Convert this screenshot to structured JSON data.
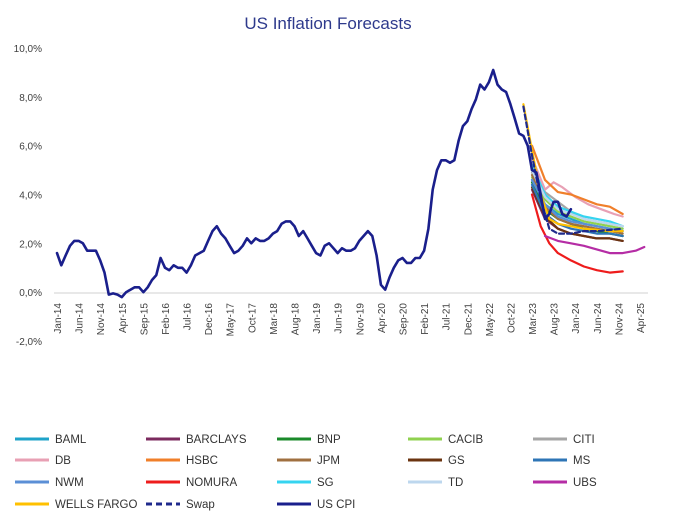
{
  "chart_data": {
    "type": "line",
    "title": "US Inflation Forecasts",
    "xlabel": "",
    "ylabel": "",
    "ylim": [
      -2.0,
      10.0
    ],
    "yticks": [
      "-2,0%",
      "0,0%",
      "2,0%",
      "4,0%",
      "6,0%",
      "8,0%",
      "10,0%"
    ],
    "ytick_values": [
      -2,
      0,
      2,
      4,
      6,
      8,
      10
    ],
    "x_range": [
      0,
      135
    ],
    "x_ticks": [
      {
        "label": "Jan-14",
        "t": 0
      },
      {
        "label": "Jun-14",
        "t": 5
      },
      {
        "label": "Nov-14",
        "t": 10
      },
      {
        "label": "Apr-15",
        "t": 15
      },
      {
        "label": "Sep-15",
        "t": 20
      },
      {
        "label": "Feb-16",
        "t": 25
      },
      {
        "label": "Jul-16",
        "t": 30
      },
      {
        "label": "Dec-16",
        "t": 35
      },
      {
        "label": "May-17",
        "t": 40
      },
      {
        "label": "Oct-17",
        "t": 45
      },
      {
        "label": "Mar-18",
        "t": 50
      },
      {
        "label": "Aug-18",
        "t": 55
      },
      {
        "label": "Jan-19",
        "t": 60
      },
      {
        "label": "Jun-19",
        "t": 65
      },
      {
        "label": "Nov-19",
        "t": 70
      },
      {
        "label": "Apr-20",
        "t": 75
      },
      {
        "label": "Sep-20",
        "t": 80
      },
      {
        "label": "Feb-21",
        "t": 85
      },
      {
        "label": "Jul-21",
        "t": 90
      },
      {
        "label": "Dec-21",
        "t": 95
      },
      {
        "label": "May-22",
        "t": 100
      },
      {
        "label": "Oct-22",
        "t": 105
      },
      {
        "label": "Mar-23",
        "t": 110
      },
      {
        "label": "Aug-23",
        "t": 115
      },
      {
        "label": "Jan-24",
        "t": 120
      },
      {
        "label": "Jun-24",
        "t": 125
      },
      {
        "label": "Nov-24",
        "t": 130
      },
      {
        "label": "Apr-25",
        "t": 135
      }
    ],
    "grid": false,
    "legend_position": "bottom",
    "series": [
      {
        "name": "BAML",
        "color": "#1fa3c9",
        "dash": false,
        "points": [
          [
            110,
            4.6
          ],
          [
            113,
            3.6
          ],
          [
            116,
            3.2
          ],
          [
            119,
            3.0
          ],
          [
            122,
            2.8
          ],
          [
            125,
            2.7
          ],
          [
            128,
            2.6
          ],
          [
            131,
            2.5
          ]
        ]
      },
      {
        "name": "BARCLAYS",
        "color": "#7b2a5e",
        "dash": false,
        "points": [
          [
            110,
            4.2
          ],
          [
            113,
            3.0
          ],
          [
            116,
            2.6
          ],
          [
            119,
            2.4
          ],
          [
            122,
            2.3
          ],
          [
            125,
            2.2
          ],
          [
            128,
            2.2
          ],
          [
            131,
            2.1
          ]
        ]
      },
      {
        "name": "BNP",
        "color": "#1a8a2a",
        "dash": false,
        "points": [
          [
            110,
            4.5
          ],
          [
            113,
            3.4
          ],
          [
            116,
            3.0
          ],
          [
            119,
            2.8
          ],
          [
            122,
            2.6
          ],
          [
            125,
            2.5
          ],
          [
            128,
            2.4
          ],
          [
            131,
            2.3
          ]
        ]
      },
      {
        "name": "CACIB",
        "color": "#8fd14f",
        "dash": false,
        "points": [
          [
            110,
            4.7
          ],
          [
            113,
            3.8
          ],
          [
            116,
            3.3
          ],
          [
            119,
            3.1
          ],
          [
            122,
            2.9
          ],
          [
            125,
            2.8
          ],
          [
            128,
            2.7
          ],
          [
            131,
            2.6
          ]
        ]
      },
      {
        "name": "CITI",
        "color": "#a6a6a6",
        "dash": false,
        "points": [
          [
            110,
            4.9
          ],
          [
            113,
            4.1
          ],
          [
            116,
            3.7
          ],
          [
            119,
            3.3
          ],
          [
            122,
            3.0
          ],
          [
            125,
            2.9
          ],
          [
            128,
            2.8
          ],
          [
            131,
            2.7
          ]
        ]
      },
      {
        "name": "DB",
        "color": "#e8a0b4",
        "dash": false,
        "points": [
          [
            110,
            5.5
          ],
          [
            113,
            4.2
          ],
          [
            115,
            4.5
          ],
          [
            117,
            4.3
          ],
          [
            120,
            3.9
          ],
          [
            123,
            3.6
          ],
          [
            126,
            3.4
          ],
          [
            129,
            3.2
          ],
          [
            131,
            3.1
          ]
        ]
      },
      {
        "name": "HSBC",
        "color": "#f07f2a",
        "dash": false,
        "points": [
          [
            110,
            6.0
          ],
          [
            113,
            4.6
          ],
          [
            116,
            4.1
          ],
          [
            119,
            4.0
          ],
          [
            122,
            3.8
          ],
          [
            125,
            3.6
          ],
          [
            128,
            3.5
          ],
          [
            131,
            3.2
          ]
        ]
      },
      {
        "name": "JPM",
        "color": "#a07040",
        "dash": false,
        "points": [
          [
            110,
            4.8
          ],
          [
            113,
            3.5
          ],
          [
            116,
            3.0
          ],
          [
            119,
            2.8
          ],
          [
            122,
            2.7
          ],
          [
            125,
            2.6
          ],
          [
            128,
            2.5
          ],
          [
            131,
            2.4
          ]
        ]
      },
      {
        "name": "GS",
        "color": "#6b3410",
        "dash": false,
        "points": [
          [
            110,
            4.3
          ],
          [
            113,
            3.1
          ],
          [
            116,
            2.6
          ],
          [
            119,
            2.4
          ],
          [
            122,
            2.3
          ],
          [
            125,
            2.2
          ],
          [
            128,
            2.2
          ],
          [
            131,
            2.1
          ]
        ]
      },
      {
        "name": "MS",
        "color": "#2e75b6",
        "dash": false,
        "points": [
          [
            110,
            4.4
          ],
          [
            113,
            3.2
          ],
          [
            116,
            2.8
          ],
          [
            119,
            2.6
          ],
          [
            122,
            2.5
          ],
          [
            125,
            2.4
          ],
          [
            128,
            2.4
          ],
          [
            131,
            2.3
          ]
        ]
      },
      {
        "name": "NWM",
        "color": "#5b8fd6",
        "dash": false,
        "points": [
          [
            110,
            4.6
          ],
          [
            113,
            3.6
          ],
          [
            116,
            3.1
          ],
          [
            119,
            2.9
          ],
          [
            122,
            2.8
          ],
          [
            125,
            2.7
          ],
          [
            128,
            2.6
          ],
          [
            131,
            2.5
          ]
        ]
      },
      {
        "name": "NOMURA",
        "color": "#ee1c1c",
        "dash": false,
        "points": [
          [
            110,
            4.0
          ],
          [
            112,
            2.7
          ],
          [
            114,
            2.0
          ],
          [
            116,
            1.6
          ],
          [
            119,
            1.3
          ],
          [
            122,
            1.05
          ],
          [
            125,
            0.9
          ],
          [
            128,
            0.8
          ],
          [
            131,
            0.85
          ]
        ]
      },
      {
        "name": "SG",
        "color": "#35d4f0",
        "dash": false,
        "points": [
          [
            110,
            5.2
          ],
          [
            113,
            4.0
          ],
          [
            116,
            3.5
          ],
          [
            119,
            3.3
          ],
          [
            122,
            3.1
          ],
          [
            125,
            3.0
          ],
          [
            128,
            2.9
          ],
          [
            131,
            2.7
          ]
        ]
      },
      {
        "name": "TD",
        "color": "#bdd7ee",
        "dash": false,
        "points": [
          [
            110,
            5.0
          ],
          [
            113,
            3.9
          ],
          [
            116,
            3.4
          ],
          [
            119,
            3.2
          ],
          [
            122,
            3.0
          ],
          [
            125,
            2.9
          ],
          [
            128,
            2.8
          ],
          [
            131,
            2.7
          ]
        ]
      },
      {
        "name": "UBS",
        "color": "#b52da5",
        "dash": false,
        "points": [
          [
            113,
            2.3
          ],
          [
            116,
            2.1
          ],
          [
            119,
            2.0
          ],
          [
            122,
            1.9
          ],
          [
            125,
            1.75
          ],
          [
            128,
            1.6
          ],
          [
            131,
            1.6
          ],
          [
            134,
            1.7
          ],
          [
            136,
            1.85
          ]
        ]
      },
      {
        "name": "WELLS FARGO",
        "color": "#ffc000",
        "dash": false,
        "points": [
          [
            108,
            7.7
          ],
          [
            110,
            5.8
          ],
          [
            112,
            4.0
          ],
          [
            114,
            3.0
          ],
          [
            116,
            2.8
          ],
          [
            119,
            2.7
          ],
          [
            122,
            2.6
          ],
          [
            125,
            2.55
          ],
          [
            128,
            2.5
          ],
          [
            131,
            2.5
          ]
        ]
      },
      {
        "name": "Swap",
        "color": "#1f2a8c",
        "dash": true,
        "points": [
          [
            108,
            7.6
          ],
          [
            110,
            5.6
          ],
          [
            112,
            3.8
          ],
          [
            114,
            2.6
          ],
          [
            116,
            2.4
          ],
          [
            119,
            2.4
          ],
          [
            122,
            2.5
          ],
          [
            125,
            2.5
          ],
          [
            128,
            2.55
          ],
          [
            131,
            2.6
          ]
        ]
      },
      {
        "name": "US CPI",
        "color": "#1a1f8c",
        "dash": false,
        "points": [
          [
            0,
            1.6
          ],
          [
            1,
            1.1
          ],
          [
            2,
            1.5
          ],
          [
            3,
            1.9
          ],
          [
            4,
            2.1
          ],
          [
            5,
            2.1
          ],
          [
            6,
            2.0
          ],
          [
            7,
            1.7
          ],
          [
            8,
            1.7
          ],
          [
            9,
            1.7
          ],
          [
            10,
            1.3
          ],
          [
            11,
            0.8
          ],
          [
            12,
            -0.1
          ],
          [
            13,
            -0.05
          ],
          [
            14,
            -0.1
          ],
          [
            15,
            -0.2
          ],
          [
            16,
            0.0
          ],
          [
            17,
            0.1
          ],
          [
            18,
            0.2
          ],
          [
            19,
            0.2
          ],
          [
            20,
            0.0
          ],
          [
            21,
            0.2
          ],
          [
            22,
            0.5
          ],
          [
            23,
            0.7
          ],
          [
            24,
            1.4
          ],
          [
            25,
            1.0
          ],
          [
            26,
            0.9
          ],
          [
            27,
            1.1
          ],
          [
            28,
            1.0
          ],
          [
            29,
            1.0
          ],
          [
            30,
            0.8
          ],
          [
            31,
            1.1
          ],
          [
            32,
            1.5
          ],
          [
            33,
            1.6
          ],
          [
            34,
            1.7
          ],
          [
            35,
            2.1
          ],
          [
            36,
            2.5
          ],
          [
            37,
            2.7
          ],
          [
            38,
            2.4
          ],
          [
            39,
            2.2
          ],
          [
            40,
            1.9
          ],
          [
            41,
            1.6
          ],
          [
            42,
            1.7
          ],
          [
            43,
            1.9
          ],
          [
            44,
            2.2
          ],
          [
            45,
            2.0
          ],
          [
            46,
            2.2
          ],
          [
            47,
            2.1
          ],
          [
            48,
            2.1
          ],
          [
            49,
            2.2
          ],
          [
            50,
            2.4
          ],
          [
            51,
            2.5
          ],
          [
            52,
            2.8
          ],
          [
            53,
            2.9
          ],
          [
            54,
            2.9
          ],
          [
            55,
            2.7
          ],
          [
            56,
            2.3
          ],
          [
            57,
            2.5
          ],
          [
            58,
            2.2
          ],
          [
            59,
            1.9
          ],
          [
            60,
            1.6
          ],
          [
            61,
            1.5
          ],
          [
            62,
            1.9
          ],
          [
            63,
            2.0
          ],
          [
            64,
            1.8
          ],
          [
            65,
            1.6
          ],
          [
            66,
            1.8
          ],
          [
            67,
            1.7
          ],
          [
            68,
            1.7
          ],
          [
            69,
            1.8
          ],
          [
            70,
            2.1
          ],
          [
            71,
            2.3
          ],
          [
            72,
            2.5
          ],
          [
            73,
            2.3
          ],
          [
            74,
            1.5
          ],
          [
            75,
            0.3
          ],
          [
            76,
            0.1
          ],
          [
            77,
            0.6
          ],
          [
            78,
            1.0
          ],
          [
            79,
            1.3
          ],
          [
            80,
            1.4
          ],
          [
            81,
            1.2
          ],
          [
            82,
            1.2
          ],
          [
            83,
            1.4
          ],
          [
            84,
            1.4
          ],
          [
            85,
            1.7
          ],
          [
            86,
            2.6
          ],
          [
            87,
            4.2
          ],
          [
            88,
            5.0
          ],
          [
            89,
            5.4
          ],
          [
            90,
            5.4
          ],
          [
            91,
            5.3
          ],
          [
            92,
            5.4
          ],
          [
            93,
            6.2
          ],
          [
            94,
            6.8
          ],
          [
            95,
            7.0
          ],
          [
            96,
            7.5
          ],
          [
            97,
            7.9
          ],
          [
            98,
            8.5
          ],
          [
            99,
            8.3
          ],
          [
            100,
            8.6
          ],
          [
            101,
            9.1
          ],
          [
            102,
            8.5
          ],
          [
            103,
            8.3
          ],
          [
            104,
            8.2
          ],
          [
            105,
            7.7
          ],
          [
            106,
            7.1
          ],
          [
            107,
            6.5
          ],
          [
            108,
            6.4
          ],
          [
            109,
            6.0
          ],
          [
            110,
            5.0
          ],
          [
            111,
            4.9
          ],
          [
            112,
            4.0
          ],
          [
            113,
            3.0
          ],
          [
            114,
            3.2
          ],
          [
            115,
            3.7
          ],
          [
            116,
            3.7
          ],
          [
            117,
            3.2
          ],
          [
            118,
            3.1
          ],
          [
            119,
            3.4
          ]
        ]
      }
    ]
  }
}
